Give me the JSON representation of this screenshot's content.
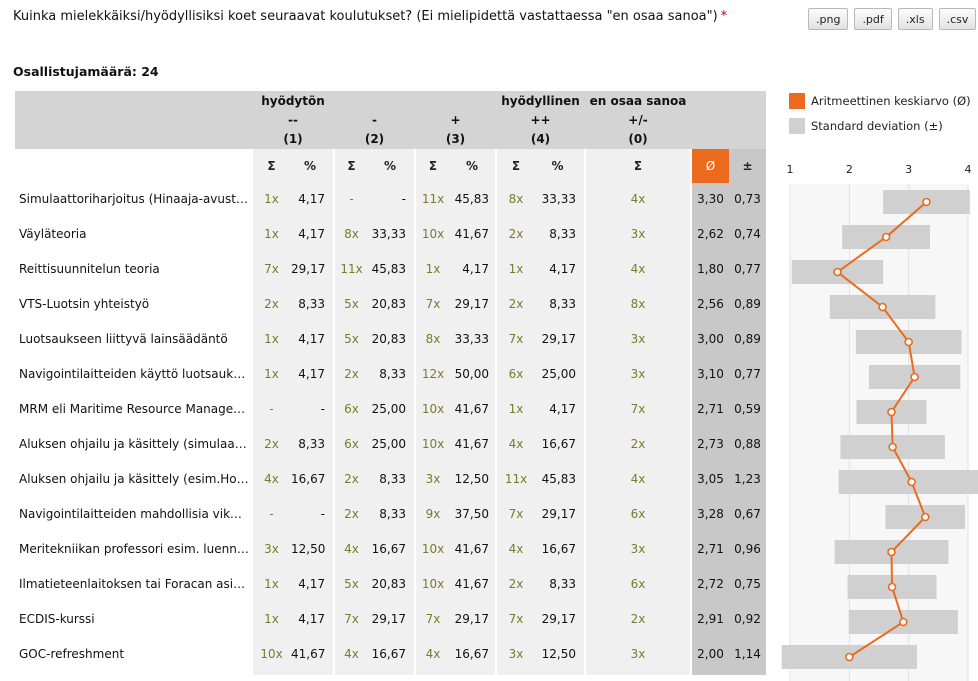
{
  "question": {
    "text": "Kuinka mielekkäiksi/hyödyllisiksi koet seuraavat koulutukset? (Ei mielipidettä vastattaessa \"en osaa sanoa\")",
    "required_mark": "*"
  },
  "exports": [
    ".png",
    ".pdf",
    ".xls",
    ".csv"
  ],
  "participants": "Osallistujamäärä: 24",
  "columns": [
    {
      "top": "hyödytön",
      "mid": "--",
      "num": "(1)"
    },
    {
      "top": "",
      "mid": "-",
      "num": "(2)"
    },
    {
      "top": "",
      "mid": "+",
      "num": "(3)"
    },
    {
      "top": "hyödyllinen",
      "mid": "++",
      "num": "(4)"
    },
    {
      "top": "en osaa sanoa",
      "mid": "+/-",
      "num": "(0)"
    }
  ],
  "subheaders": {
    "sum": "Σ",
    "pct": "%",
    "mean": "Ø",
    "sd": "±"
  },
  "legend": {
    "mean": "Aritmeettinen keskiarvo (Ø)",
    "sd": "Standard deviation (±)"
  },
  "colors": {
    "mean": "#ec6a1e",
    "sd": "#d0d0d0",
    "header": "#d4d4d4",
    "count": "#7a7a2e"
  },
  "rows": [
    {
      "label": "Simulaattoriharjoitus (Hinaaja-avustus)",
      "c1": "1x",
      "p1": "4,17",
      "c2": "-",
      "p2": "-",
      "c3": "11x",
      "p3": "45,83",
      "c4": "8x",
      "p4": "33,33",
      "c0": "4x",
      "mean": "3,30",
      "sd": "0,73"
    },
    {
      "label": "Väyläteoria",
      "c1": "1x",
      "p1": "4,17",
      "c2": "8x",
      "p2": "33,33",
      "c3": "10x",
      "p3": "41,67",
      "c4": "2x",
      "p4": "8,33",
      "c0": "3x",
      "mean": "2,62",
      "sd": "0,74"
    },
    {
      "label": "Reittisuunnitelun teoria",
      "c1": "7x",
      "p1": "29,17",
      "c2": "11x",
      "p2": "45,83",
      "c3": "1x",
      "p3": "4,17",
      "c4": "1x",
      "p4": "4,17",
      "c0": "4x",
      "mean": "1,80",
      "sd": "0,77"
    },
    {
      "label": "VTS-Luotsin yhteistyö",
      "c1": "2x",
      "p1": "8,33",
      "c2": "5x",
      "p2": "20,83",
      "c3": "7x",
      "p3": "29,17",
      "c4": "2x",
      "p4": "8,33",
      "c0": "8x",
      "mean": "2,56",
      "sd": "0,89"
    },
    {
      "label": "Luotsaukseen liittyvä lainsäädäntö",
      "c1": "1x",
      "p1": "4,17",
      "c2": "5x",
      "p2": "20,83",
      "c3": "8x",
      "p3": "33,33",
      "c4": "7x",
      "p4": "29,17",
      "c0": "3x",
      "mean": "3,00",
      "sd": "0,89"
    },
    {
      "label": "Navigointilaitteiden käyttö luotsauksessa",
      "c1": "1x",
      "p1": "4,17",
      "c2": "2x",
      "p2": "8,33",
      "c3": "12x",
      "p3": "50,00",
      "c4": "6x",
      "p4": "25,00",
      "c0": "3x",
      "mean": "3,10",
      "sd": "0,77"
    },
    {
      "label": "MRM eli Maritime Resource Management",
      "c1": "-",
      "p1": "-",
      "c2": "6x",
      "p2": "25,00",
      "c3": "10x",
      "p3": "41,67",
      "c4": "1x",
      "p4": "4,17",
      "c0": "7x",
      "mean": "2,71",
      "sd": "0,59"
    },
    {
      "label": "Aluksen ohjailu ja käsittely (simulaattori)",
      "c1": "2x",
      "p1": "8,33",
      "c2": "6x",
      "p2": "25,00",
      "c3": "10x",
      "p3": "41,67",
      "c4": "4x",
      "p4": "16,67",
      "c0": "2x",
      "mean": "2,73",
      "sd": "0,88"
    },
    {
      "label": "Aluksen ohjailu ja käsittely (esim.Hollanti)",
      "c1": "4x",
      "p1": "16,67",
      "c2": "2x",
      "p2": "8,33",
      "c3": "3x",
      "p3": "12,50",
      "c4": "11x",
      "p4": "45,83",
      "c0": "4x",
      "mean": "3,05",
      "sd": "1,23"
    },
    {
      "label": "Navigointilaitteiden mahdollisia vikatilanteita",
      "c1": "-",
      "p1": "-",
      "c2": "2x",
      "p2": "8,33",
      "c3": "9x",
      "p3": "37,50",
      "c4": "7x",
      "p4": "29,17",
      "c0": "6x",
      "mean": "3,28",
      "sd": "0,67"
    },
    {
      "label": "Meritekniikan professori esim. luennoitsijana",
      "c1": "3x",
      "p1": "12,50",
      "c2": "4x",
      "p2": "16,67",
      "c3": "10x",
      "p3": "41,67",
      "c4": "4x",
      "p4": "16,67",
      "c0": "3x",
      "mean": "2,71",
      "sd": "0,96"
    },
    {
      "label": "Ilmatieteenlaitoksen tai Foracan asiantuntija",
      "c1": "1x",
      "p1": "4,17",
      "c2": "5x",
      "p2": "20,83",
      "c3": "10x",
      "p3": "41,67",
      "c4": "2x",
      "p4": "8,33",
      "c0": "6x",
      "mean": "2,72",
      "sd": "0,75"
    },
    {
      "label": "ECDIS-kurssi",
      "c1": "1x",
      "p1": "4,17",
      "c2": "7x",
      "p2": "29,17",
      "c3": "7x",
      "p3": "29,17",
      "c4": "7x",
      "p4": "29,17",
      "c0": "2x",
      "mean": "2,91",
      "sd": "0,92"
    },
    {
      "label": "GOC-refreshment",
      "c1": "10x",
      "p1": "41,67",
      "c2": "4x",
      "p2": "16,67",
      "c3": "4x",
      "p3": "16,67",
      "c4": "3x",
      "p4": "12,50",
      "c0": "3x",
      "mean": "2,00",
      "sd": "1,14"
    }
  ],
  "chart_data": {
    "type": "scatter",
    "x_ticks": [
      "1",
      "2",
      "3",
      "4"
    ],
    "xlim": [
      1,
      4
    ],
    "mean": [
      3.3,
      2.62,
      1.8,
      2.56,
      3.0,
      3.1,
      2.71,
      2.73,
      3.05,
      3.28,
      2.71,
      2.72,
      2.91,
      2.0
    ],
    "sd": [
      0.73,
      0.74,
      0.77,
      0.89,
      0.89,
      0.77,
      0.59,
      0.88,
      1.23,
      0.67,
      0.96,
      0.75,
      0.92,
      1.14
    ]
  }
}
